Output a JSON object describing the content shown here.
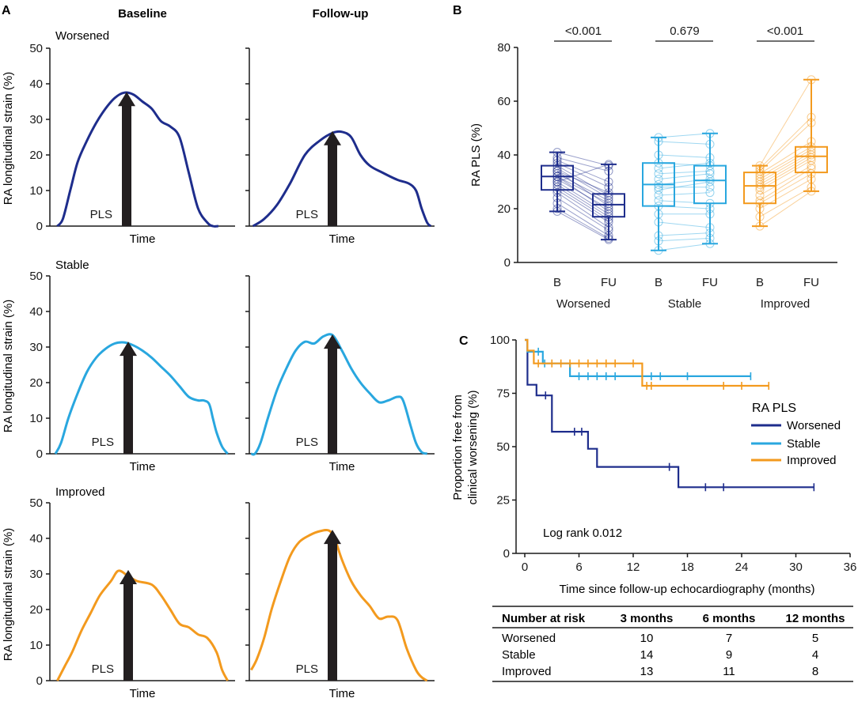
{
  "panel_labels": {
    "a": "A",
    "b": "B",
    "c": "C"
  },
  "colors": {
    "worsened": "#1e2d8c",
    "stable": "#29a7df",
    "improved": "#f39a1e",
    "arrow": "#231f20"
  },
  "chart_data": [
    {
      "id": "A",
      "type": "line",
      "col_titles": [
        "Baseline",
        "Follow-up"
      ],
      "row_labels": [
        "Worsened",
        "Stable",
        "Improved"
      ],
      "ylabel": "RA longitudinal strain (%)",
      "xlabel": "Time",
      "ylim": [
        0,
        50
      ],
      "yticks": [
        "0",
        "10",
        "20",
        "30",
        "40",
        "50"
      ],
      "arrow_label": "PLS",
      "peaks": {
        "worsened": [
          37.5,
          26.5
        ],
        "stable": [
          31.3,
          33.3
        ],
        "improved": [
          30.9,
          42.2
        ]
      },
      "curves": [
        [
          {
            "key": "worsened",
            "x": [
              0.04,
              0.07,
              0.11,
              0.15,
              0.2,
              0.25,
              0.3,
              0.35,
              0.4,
              0.45,
              0.5,
              0.55,
              0.6,
              0.65,
              0.7,
              0.75,
              0.8,
              0.85,
              0.88,
              0.91
            ],
            "y": [
              0,
              2,
              10,
              18,
              24,
              29,
              33,
              36,
              37.5,
              37,
              35,
              33,
              29.5,
              28,
              25,
              15,
              5,
              1,
              0,
              0
            ]
          },
          {
            "key": "worsened",
            "x": [
              0.02,
              0.08,
              0.15,
              0.22,
              0.3,
              0.38,
              0.45,
              0.5,
              0.55,
              0.6,
              0.65,
              0.72,
              0.8,
              0.86,
              0.9,
              0.93,
              0.96,
              0.98
            ],
            "y": [
              0,
              2,
              6,
              12,
              20,
              24,
              26.2,
              26.5,
              25,
              20,
              17,
              15,
              13,
              12,
              10,
              5,
              1,
              0
            ]
          }
        ],
        [
          {
            "key": "stable",
            "x": [
              0.03,
              0.06,
              0.1,
              0.15,
              0.2,
              0.25,
              0.3,
              0.35,
              0.4,
              0.45,
              0.5,
              0.55,
              0.6,
              0.65,
              0.7,
              0.75,
              0.8,
              0.83,
              0.86,
              0.88,
              0.9,
              0.93,
              0.96
            ],
            "y": [
              0,
              3,
              10,
              17,
              23,
              27,
              29.5,
              31,
              31.3,
              30.5,
              29,
              27,
              24.5,
              22,
              19,
              16,
              15,
              15,
              14,
              10,
              6,
              2,
              0
            ]
          },
          {
            "key": "stable",
            "x": [
              0.01,
              0.03,
              0.06,
              0.1,
              0.15,
              0.2,
              0.25,
              0.3,
              0.35,
              0.4,
              0.45,
              0.5,
              0.55,
              0.6,
              0.65,
              0.7,
              0.75,
              0.8,
              0.83,
              0.87,
              0.9,
              0.93,
              0.96
            ],
            "y": [
              0,
              0,
              3,
              10,
              18,
              24,
              29,
              31.5,
              31,
              33,
              33.3,
              29,
              24,
              20,
              17,
              14.5,
              15,
              16,
              15,
              8,
              3,
              0.5,
              0
            ]
          }
        ],
        [
          {
            "key": "improved",
            "x": [
              0.04,
              0.08,
              0.12,
              0.17,
              0.22,
              0.27,
              0.33,
              0.37,
              0.42,
              0.47,
              0.55,
              0.6,
              0.65,
              0.7,
              0.75,
              0.8,
              0.85,
              0.9,
              0.93,
              0.96
            ],
            "y": [
              0,
              4,
              8,
              14,
              19,
              24,
              28,
              30.9,
              29.5,
              28,
              27,
              24,
              20,
              16,
              15,
              13,
              12,
              8,
              3,
              0
            ]
          },
          {
            "key": "improved",
            "x": [
              0.01,
              0.04,
              0.08,
              0.12,
              0.17,
              0.22,
              0.27,
              0.33,
              0.38,
              0.43,
              0.46,
              0.5,
              0.55,
              0.6,
              0.65,
              0.7,
              0.75,
              0.8,
              0.85,
              0.9,
              0.93,
              0.96
            ],
            "y": [
              3,
              6,
              12,
              20,
              28,
              35,
              39,
              41,
              42,
              42.2,
              40,
              34,
              28,
              24,
              21,
              17.5,
              18,
              17,
              9,
              3,
              1,
              0
            ]
          }
        ]
      ]
    },
    {
      "id": "B",
      "type": "box",
      "ylabel": "RA PLS (%)",
      "ylim": [
        0,
        80
      ],
      "yticks": [
        "0",
        "20",
        "40",
        "60",
        "80"
      ],
      "groups": [
        {
          "name": "Worsened",
          "key": "worsened",
          "p": "<0.001",
          "boxes": [
            {
              "label": "B",
              "min": 19,
              "q1": 27,
              "median": 32,
              "q3": 36,
              "max": 41
            },
            {
              "label": "FU",
              "min": 8.5,
              "q1": 17,
              "median": 21.5,
              "q3": 25.5,
              "max": 36.5
            }
          ],
          "pairs": [
            [
              41,
              36
            ],
            [
              39,
              34
            ],
            [
              38,
              30
            ],
            [
              37,
              28
            ],
            [
              36,
              25
            ],
            [
              35,
              24
            ],
            [
              34,
              26
            ],
            [
              34,
              21
            ],
            [
              33,
              23
            ],
            [
              32,
              22
            ],
            [
              32,
              19
            ],
            [
              31,
              20
            ],
            [
              30,
              18
            ],
            [
              29,
              17
            ],
            [
              28,
              16
            ],
            [
              27,
              15
            ],
            [
              26,
              13
            ],
            [
              24,
              12
            ],
            [
              22,
              10
            ],
            [
              20,
              9
            ],
            [
              19,
              8.5
            ],
            [
              30,
              36.5
            ]
          ]
        },
        {
          "name": "Stable",
          "key": "stable",
          "p": "0.679",
          "boxes": [
            {
              "label": "B",
              "min": 4.5,
              "q1": 21,
              "median": 29,
              "q3": 37,
              "max": 46.5
            },
            {
              "label": "FU",
              "min": 7,
              "q1": 22,
              "median": 30.5,
              "q3": 36,
              "max": 48
            }
          ],
          "pairs": [
            [
              46.5,
              48
            ],
            [
              45,
              44
            ],
            [
              40,
              39
            ],
            [
              37,
              36
            ],
            [
              35,
              37
            ],
            [
              33,
              34
            ],
            [
              31,
              33
            ],
            [
              29,
              31
            ],
            [
              28,
              28
            ],
            [
              27,
              30
            ],
            [
              25,
              26
            ],
            [
              23,
              22
            ],
            [
              21,
              20
            ],
            [
              18,
              18
            ],
            [
              15,
              13
            ],
            [
              10,
              11
            ],
            [
              8,
              9
            ],
            [
              4.5,
              7
            ]
          ]
        },
        {
          "name": "Improved",
          "key": "improved",
          "p": "<0.001",
          "boxes": [
            {
              "label": "B",
              "min": 13.5,
              "q1": 22,
              "median": 28.5,
              "q3": 33.5,
              "max": 36
            },
            {
              "label": "FU",
              "min": 26.5,
              "q1": 33.5,
              "median": 39.5,
              "q3": 43,
              "max": 68
            }
          ],
          "pairs": [
            [
              36,
              68
            ],
            [
              35,
              54
            ],
            [
              34,
              52
            ],
            [
              33,
              45
            ],
            [
              32,
              43
            ],
            [
              31,
              42
            ],
            [
              30,
              41
            ],
            [
              29,
              40
            ],
            [
              28,
              39
            ],
            [
              27,
              38
            ],
            [
              25,
              36
            ],
            [
              23,
              35
            ],
            [
              22,
              33
            ],
            [
              20,
              31
            ],
            [
              17,
              28
            ],
            [
              13.5,
              26.5
            ]
          ]
        }
      ]
    },
    {
      "id": "C",
      "type": "line",
      "subtype": "kaplan-meier",
      "ylabel_lines": [
        "Proportion free from",
        "clinical worsening (%)"
      ],
      "xlabel": "Time since follow-up echocardiography (months)",
      "xlim": [
        0,
        36
      ],
      "xticks": [
        "0",
        "6",
        "12",
        "18",
        "24",
        "30",
        "36"
      ],
      "ylim": [
        0,
        100
      ],
      "yticks": [
        "0",
        "25",
        "50",
        "75",
        "100"
      ],
      "legend_title": "RA PLS",
      "annotation": "Log rank 0.012",
      "series": [
        {
          "name": "Worsened",
          "key": "worsened",
          "steps": [
            [
              0,
              100
            ],
            [
              0.3,
              79
            ],
            [
              1.3,
              74
            ],
            [
              3,
              57
            ],
            [
              7,
              49
            ],
            [
              8,
              40.5
            ],
            [
              17,
              31
            ],
            [
              32,
              31
            ]
          ],
          "censors": [
            [
              2.3,
              74
            ],
            [
              5.5,
              57
            ],
            [
              6.3,
              57
            ],
            [
              16,
              40.5
            ],
            [
              20,
              31
            ],
            [
              22,
              31
            ],
            [
              32,
              31
            ]
          ]
        },
        {
          "name": "Stable",
          "key": "stable",
          "steps": [
            [
              0,
              100
            ],
            [
              0.3,
              94.5
            ],
            [
              2,
              89
            ],
            [
              5,
              83
            ],
            [
              25,
              83
            ]
          ],
          "censors": [
            [
              1.5,
              94.5
            ],
            [
              2.2,
              89
            ],
            [
              6,
              83
            ],
            [
              7,
              83
            ],
            [
              8,
              83
            ],
            [
              9,
              83
            ],
            [
              10,
              83
            ],
            [
              14,
              83
            ],
            [
              15,
              83
            ],
            [
              18,
              83
            ],
            [
              25,
              83
            ]
          ]
        },
        {
          "name": "Improved",
          "key": "improved",
          "steps": [
            [
              0,
              100
            ],
            [
              0.3,
              95
            ],
            [
              1,
              89
            ],
            [
              13,
              78.5
            ],
            [
              27,
              78.5
            ]
          ],
          "censors": [
            [
              1.5,
              89
            ],
            [
              3,
              89
            ],
            [
              4,
              89
            ],
            [
              5,
              89
            ],
            [
              6,
              89
            ],
            [
              7,
              89
            ],
            [
              8,
              89
            ],
            [
              9,
              89
            ],
            [
              10,
              89
            ],
            [
              12,
              89
            ],
            [
              13.5,
              78.5
            ],
            [
              14,
              78.5
            ],
            [
              22,
              78.5
            ],
            [
              24,
              78.5
            ],
            [
              27,
              78.5
            ]
          ]
        }
      ]
    }
  ],
  "risk_table": {
    "headers": [
      "Number at risk",
      "3 months",
      "6 months",
      "12 months"
    ],
    "rows": [
      {
        "label": "Worsened",
        "values": [
          "10",
          "7",
          "5"
        ]
      },
      {
        "label": "Stable",
        "values": [
          "14",
          "9",
          "4"
        ]
      },
      {
        "label": "Improved",
        "values": [
          "13",
          "11",
          "8"
        ]
      }
    ]
  }
}
